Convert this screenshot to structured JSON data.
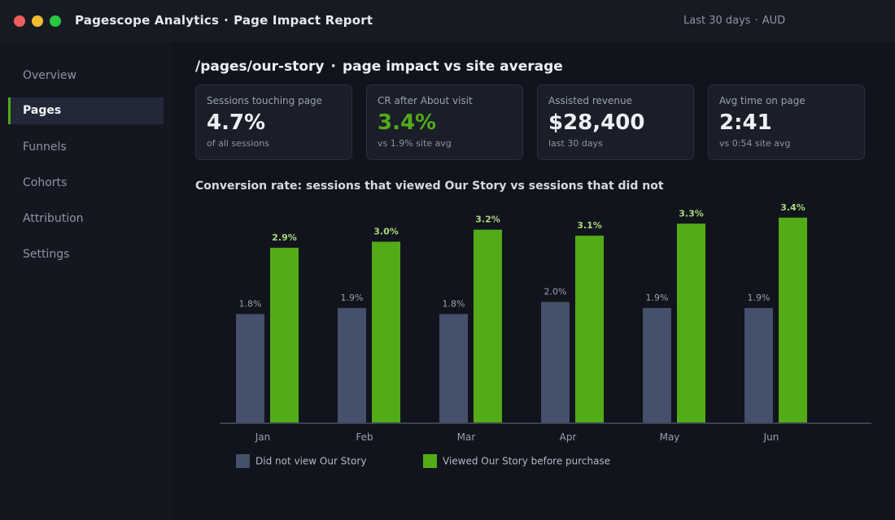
{
  "window": {
    "app_name": "Pagescope Analytics",
    "separator": "·",
    "report_name": "Page Impact Report",
    "range": "Last 30 days",
    "currency": "AUD"
  },
  "sidebar": {
    "items": [
      {
        "label": "Overview",
        "active": false
      },
      {
        "label": "Pages",
        "active": true
      },
      {
        "label": "Funnels",
        "active": false
      },
      {
        "label": "Cohorts",
        "active": false
      },
      {
        "label": "Attribution",
        "active": false
      },
      {
        "label": "Settings",
        "active": false
      }
    ]
  },
  "main": {
    "page_path": "/pages/our-story",
    "page_subtitle": "page impact vs site average",
    "cards": [
      {
        "label": "Sessions touching page",
        "value": "4.7%",
        "sub": "of all sessions",
        "accent": false
      },
      {
        "label": "CR after About visit",
        "value": "3.4%",
        "sub": "vs 1.9% site avg",
        "accent": true
      },
      {
        "label": "Assisted revenue",
        "value": "$28,400",
        "sub": "last 30 days",
        "accent": false
      },
      {
        "label": "Avg time on page",
        "value": "2:41",
        "sub": "vs 0:54 site avg",
        "accent": false
      }
    ]
  },
  "chart_data": {
    "type": "bar",
    "title": "Conversion rate: sessions that viewed Our Story vs sessions that did not",
    "categories": [
      "Jan",
      "Feb",
      "Mar",
      "Apr",
      "May",
      "Jun"
    ],
    "series": [
      {
        "name": "Did not view Our Story",
        "values": [
          1.8,
          1.9,
          1.8,
          2.0,
          1.9,
          1.9
        ],
        "labels": [
          "1.8%",
          "1.9%",
          "1.8%",
          "2.0%",
          "1.9%",
          "1.9%"
        ],
        "color": "#45506a",
        "label_color": "#9aa0ae"
      },
      {
        "name": "Viewed Our Story before purchase",
        "values": [
          2.9,
          3.0,
          3.2,
          3.1,
          3.3,
          3.4
        ],
        "labels": [
          "2.9%",
          "3.0%",
          "3.2%",
          "3.1%",
          "3.3%",
          "3.4%"
        ],
        "color": "#52ab17",
        "label_color": "#a8d977"
      }
    ],
    "ylim": [
      0,
      3.6
    ],
    "legend": "bottom-left",
    "grid": false
  },
  "colors": {
    "accent": "#52ab17",
    "background": "#11141c"
  }
}
